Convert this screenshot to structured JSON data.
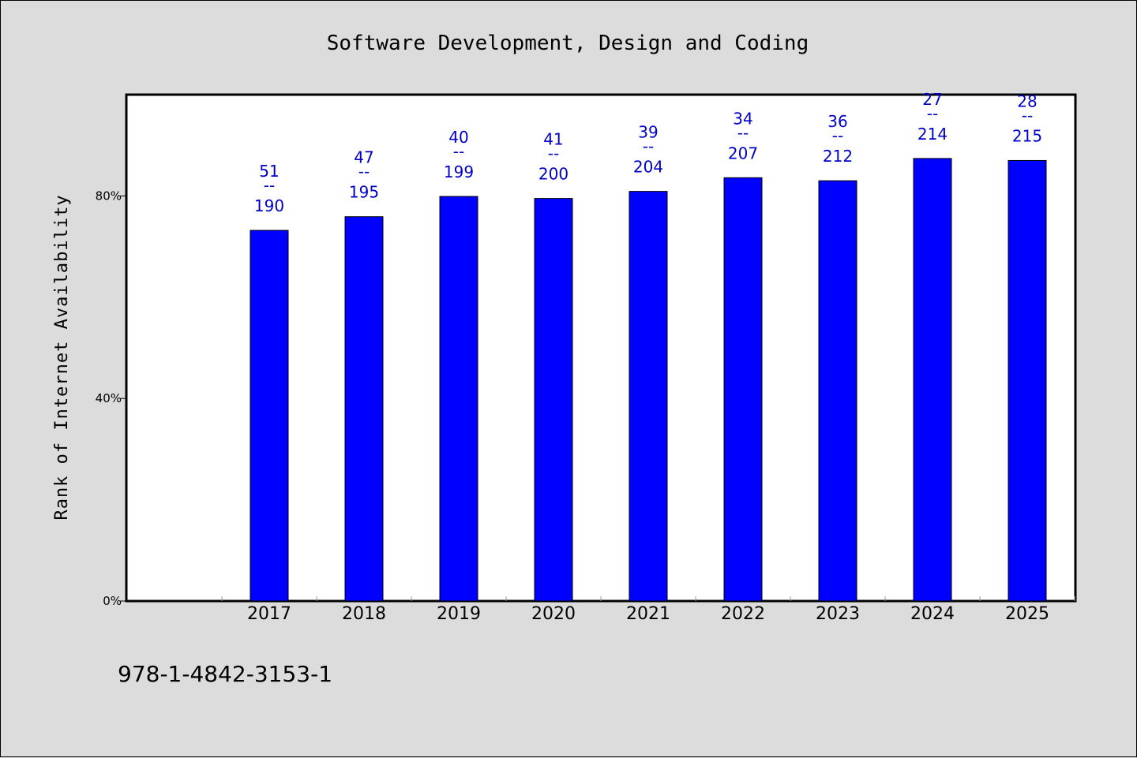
{
  "chart_data": {
    "type": "bar",
    "title": "Software Development, Design and Coding",
    "ylabel": "Rank of Internet Availability",
    "xlabel": "",
    "ylim": [
      0,
      100
    ],
    "yticks": [
      {
        "value": 0,
        "label": "0%"
      },
      {
        "value": 40,
        "label": "40%"
      },
      {
        "value": 80,
        "label": "80%"
      }
    ],
    "categories": [
      "2017",
      "2018",
      "2019",
      "2020",
      "2021",
      "2022",
      "2023",
      "2024",
      "2025"
    ],
    "values": [
      73.2,
      75.9,
      79.9,
      79.5,
      80.9,
      83.6,
      83.0,
      87.4,
      87.0
    ],
    "ranks": [
      "51",
      "47",
      "40",
      "41",
      "39",
      "34",
      "36",
      "27",
      "28"
    ],
    "totals": [
      "190",
      "195",
      "199",
      "200",
      "204",
      "207",
      "212",
      "214",
      "215"
    ],
    "separator": "--",
    "bar_color": "#0000ff",
    "label_color": "#0000cc",
    "grid": false
  },
  "footer": {
    "isbn": "978-1-4842-3153-1"
  }
}
